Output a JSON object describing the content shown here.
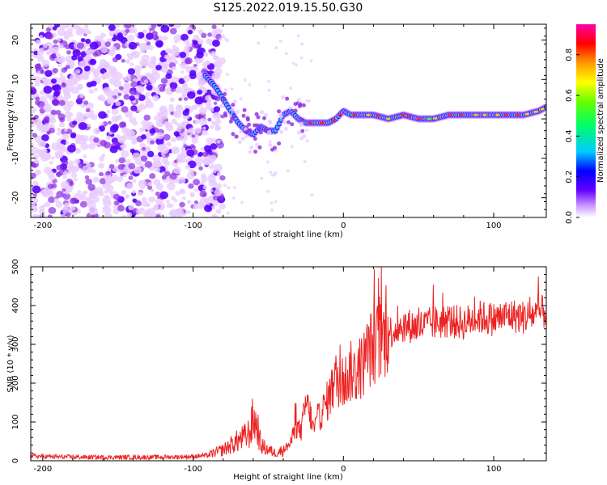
{
  "title": "S125.2022.019.15.50.G30",
  "colors": {
    "snr_line": "#ee2222",
    "spectrogram_weak": "#e8ccff",
    "spectrogram_mid": "#8a2be2",
    "spectrogram_strong": "#5a00ff"
  },
  "chart_data": [
    {
      "type": "heatmap",
      "name": "spectrogram",
      "xlabel": "Height of straight line (km)",
      "ylabel": "Frequency (Hz)",
      "xlim": [
        -208,
        135
      ],
      "ylim": [
        -25,
        24
      ],
      "xticks": [
        -200,
        -100,
        0,
        100
      ],
      "yticks": [
        -20,
        -10,
        0,
        10,
        20
      ],
      "colorbar": {
        "label": "Normalized spectral amplitude",
        "range": [
          0.0,
          0.95
        ],
        "ticks": [
          "0.0",
          "0.2",
          "0.4",
          "0.6",
          "0.8"
        ],
        "colormap": [
          "#ffffff",
          "#cc99ff",
          "#6600ff",
          "#0000ff",
          "#00ccff",
          "#00ff66",
          "#66ff00",
          "#ffff00",
          "#ff9900",
          "#ff0000",
          "#ff00aa"
        ]
      },
      "noise_region_km": [
        -208,
        -88
      ],
      "dominant_frequency_curve": {
        "x": [
          -92,
          -85,
          -80,
          -75,
          -70,
          -65,
          -60,
          -55,
          -50,
          -45,
          -40,
          -35,
          -30,
          -25,
          -20,
          -15,
          -10,
          -5,
          0,
          5,
          10,
          20,
          30,
          40,
          50,
          60,
          70,
          80,
          90,
          100,
          110,
          120,
          130,
          135
        ],
        "y": [
          11,
          8,
          5,
          2,
          -1,
          -3,
          -4,
          -2,
          -3,
          -3,
          1,
          2,
          0,
          -1,
          -1,
          -1,
          -1,
          0,
          2,
          1,
          1,
          1,
          0,
          1,
          0,
          0,
          1,
          1,
          1,
          1,
          1,
          1,
          2,
          3
        ]
      }
    },
    {
      "type": "line",
      "name": "snr",
      "xlabel": "Height of straight line (km)",
      "ylabel": "SNR (10 * v/v)",
      "xlim": [
        -208,
        135
      ],
      "ylim": [
        0,
        500
      ],
      "xticks": [
        -200,
        -100,
        0,
        100
      ],
      "yticks": [
        0,
        100,
        200,
        300,
        400,
        500
      ],
      "series": [
        {
          "x": [
            -208,
            -190,
            -170,
            -150,
            -130,
            -110,
            -100,
            -90,
            -85,
            -80,
            -75,
            -70,
            -65,
            -62,
            -60,
            -57,
            -55,
            -50,
            -45,
            -40,
            -35,
            -32,
            -28,
            -25,
            -22,
            -20,
            -15,
            -10,
            -5,
            0,
            5,
            10,
            15,
            20,
            25,
            30,
            35,
            40,
            50,
            60,
            70,
            80,
            90,
            100,
            110,
            120,
            130,
            135
          ],
          "y": [
            12,
            10,
            9,
            9,
            9,
            10,
            11,
            14,
            22,
            28,
            40,
            52,
            62,
            75,
            110,
            85,
            40,
            28,
            20,
            28,
            45,
            90,
            75,
            150,
            120,
            80,
            120,
            160,
            210,
            200,
            230,
            220,
            270,
            300,
            310,
            330,
            340,
            350,
            345,
            355,
            360,
            355,
            370,
            365,
            375,
            370,
            380,
            385
          ]
        }
      ]
    }
  ]
}
